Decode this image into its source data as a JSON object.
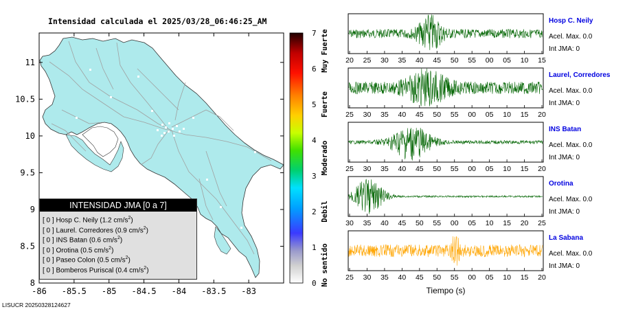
{
  "map_title": "Intensidad calculada el 2025/03/28_06:46:25_AM",
  "footer_id": "LISUCR 20250328124627",
  "colors": {
    "land": "#aeeaec",
    "roads": "#9a9a9a",
    "trace_green": "#006400",
    "trace_orange": "#ffa500",
    "station_name": "#0000e0"
  },
  "chart_data": [
    {
      "type": "heatmap",
      "name": "intensity-map",
      "title": "Intensidad calculada el 2025/03/28_06:46:25_AM",
      "x_ticks": [
        "-86",
        "-85.5",
        "-85",
        "-84.5",
        "-84",
        "-83.5",
        "-83"
      ],
      "x_range": [
        -86,
        -82.5
      ],
      "y_ticks": [
        "8",
        "8.5",
        "9",
        "9.5",
        "10",
        "10.5",
        "11"
      ],
      "y_range": [
        8,
        11.4
      ],
      "colorbar": {
        "range": [
          0,
          7
        ],
        "ticks": [
          "0",
          "1",
          "2",
          "3",
          "4",
          "5",
          "6",
          "7"
        ],
        "category_labels": [
          "No sentido",
          "Debil",
          "Moderado",
          "Fuerte",
          "Muy Fuerte"
        ]
      }
    },
    {
      "type": "table",
      "name": "intensity-legend",
      "header": "INTENSIDAD JMA [0 a 7]",
      "rows": [
        {
          "prefix": "[ 0 ]",
          "station": "Hosp C. Neily",
          "value": "(1.2 cm/s",
          "sup": "2",
          "close": ")"
        },
        {
          "prefix": "[ 0 ]",
          "station": "Laurel. Corredores",
          "value": "(0.9 cm/s",
          "sup": "2",
          "close": ")"
        },
        {
          "prefix": "[ 0 ]",
          "station": "INS Batan",
          "value": "(0.6 cm/s",
          "sup": "2",
          "close": ")"
        },
        {
          "prefix": "[ 0 ]",
          "station": "Orotina",
          "value": "(0.5 cm/s",
          "sup": "2",
          "close": ")"
        },
        {
          "prefix": "[ 0 ]",
          "station": "Paseo Colon",
          "value": "(0.5 cm/s",
          "sup": "2",
          "close": ")"
        },
        {
          "prefix": "[ 0 ]",
          "station": "Bomberos Puriscal",
          "value": "(0.4 cm/s",
          "sup": "2",
          "close": ")"
        }
      ]
    },
    {
      "type": "line",
      "name": "waveforms",
      "xlabel": "Tiempo (s)",
      "series": [
        {
          "name": "Hosp C. Neily",
          "acel_label": "Acel. Max. 0.0",
          "int_label": "Int JMA: 0",
          "color": "#006400",
          "ticks": [
            "20",
            "25",
            "30",
            "35",
            "40",
            "45",
            "50",
            "55",
            "00",
            "05",
            "10",
            "15"
          ]
        },
        {
          "name": "Laurel, Corredores",
          "acel_label": "Acel. Max. 0.0",
          "int_label": "Int JMA: 0",
          "color": "#006400",
          "ticks": [
            "25",
            "30",
            "35",
            "40",
            "45",
            "50",
            "55",
            "00",
            "05",
            "10",
            "15",
            "20"
          ]
        },
        {
          "name": "INS Batan",
          "acel_label": "Acel. Max. 0.0",
          "int_label": "Int JMA: 0",
          "color": "#006400",
          "ticks": [
            "25",
            "30",
            "35",
            "40",
            "45",
            "50",
            "55",
            "00",
            "05",
            "10",
            "15",
            "20"
          ]
        },
        {
          "name": "Orotina",
          "acel_label": "Acel. Max. 0.0",
          "int_label": "Int JMA: 0",
          "color": "#006400",
          "ticks": [
            "30",
            "35",
            "40",
            "45",
            "50",
            "55",
            "00",
            "05",
            "10",
            "15",
            "20",
            "25"
          ]
        },
        {
          "name": "La Sabana",
          "acel_label": "Acel. Max. 0.0",
          "int_label": "Int JMA: 0",
          "color": "#ffa500",
          "ticks": [
            "25",
            "30",
            "35",
            "40",
            "45",
            "50",
            "55",
            "00",
            "05",
            "10",
            "15",
            "20"
          ]
        }
      ]
    }
  ]
}
